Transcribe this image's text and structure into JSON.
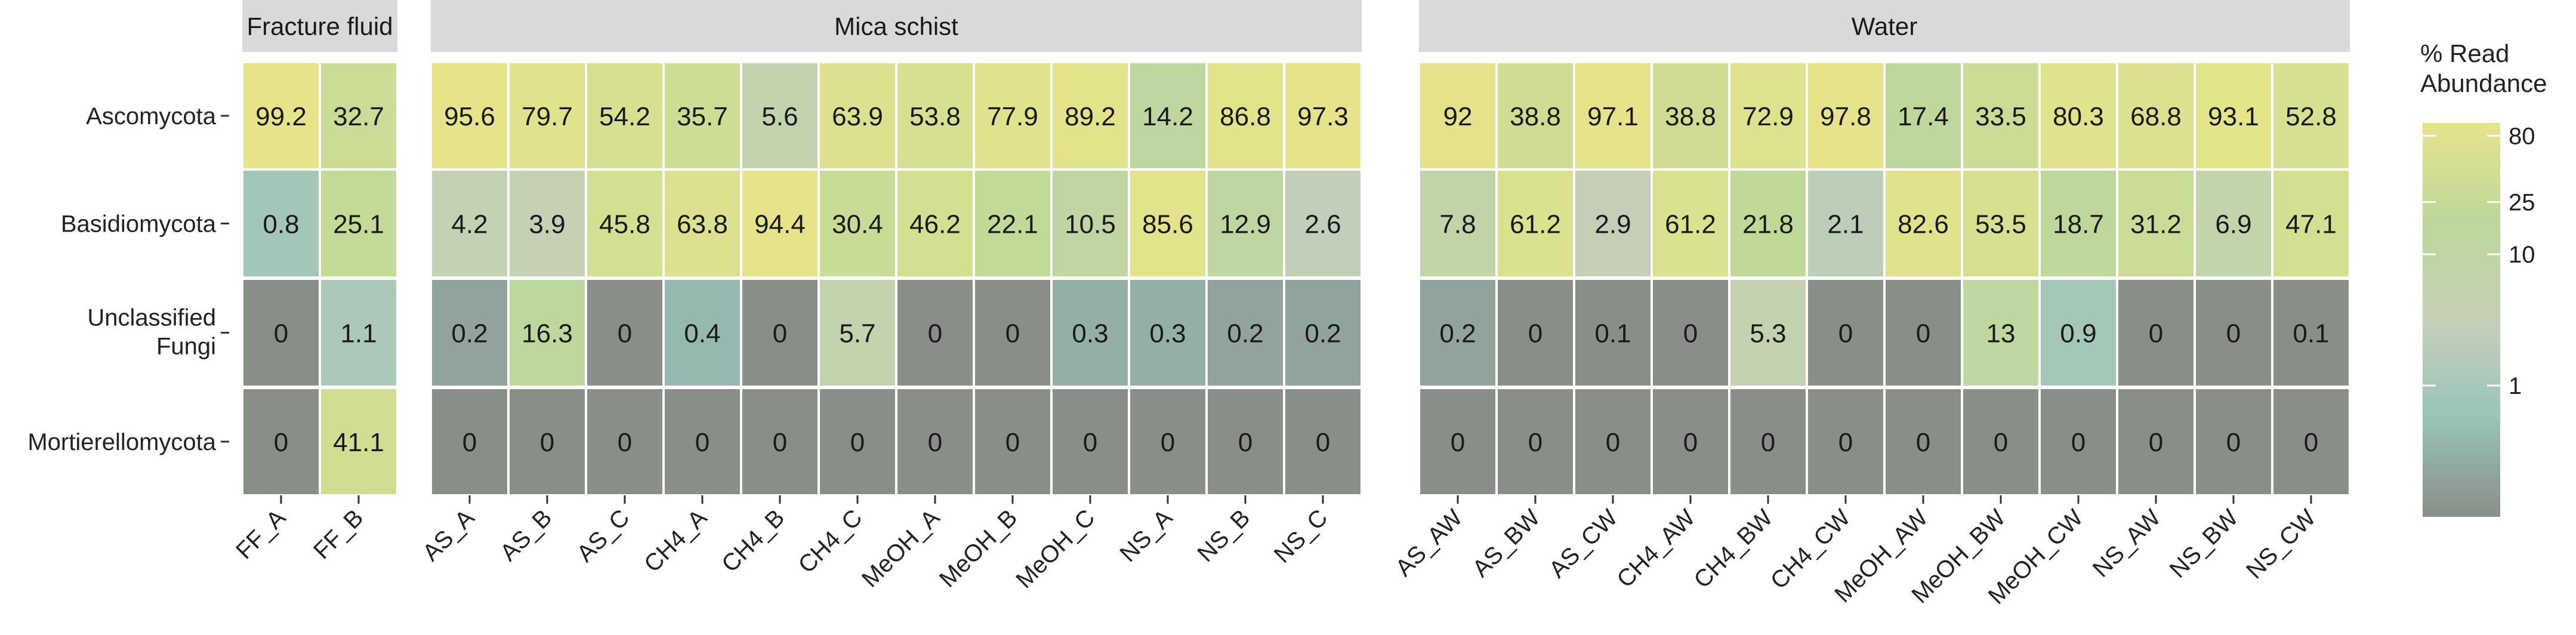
{
  "chart_data": {
    "type": "heatmap",
    "title": "",
    "rows": [
      "Ascomycota",
      "Basidiomycota",
      "Unclassified Fungi",
      "Mortierellomycota"
    ],
    "panels": [
      {
        "name": "Fracture fluid",
        "columns": [
          "FF_A",
          "FF_B"
        ],
        "values": [
          [
            99.2,
            32.7
          ],
          [
            0.8,
            25.1
          ],
          [
            0,
            1.1
          ],
          [
            0,
            41.1
          ]
        ]
      },
      {
        "name": "Mica schist",
        "columns": [
          "AS_A",
          "AS_B",
          "AS_C",
          "CH4_A",
          "CH4_B",
          "CH4_C",
          "MeOH_A",
          "MeOH_B",
          "MeOH_C",
          "NS_A",
          "NS_B",
          "NS_C"
        ],
        "values": [
          [
            95.6,
            79.7,
            54.2,
            35.7,
            5.6,
            63.9,
            53.8,
            77.9,
            89.2,
            14.2,
            86.8,
            97.3
          ],
          [
            4.2,
            3.9,
            45.8,
            63.8,
            94.4,
            30.4,
            46.2,
            22.1,
            10.5,
            85.6,
            12.9,
            2.6
          ],
          [
            0.2,
            16.3,
            0,
            0.4,
            0,
            5.7,
            0,
            0,
            0.3,
            0.3,
            0.2,
            0.2
          ],
          [
            0,
            0,
            0,
            0,
            0,
            0,
            0,
            0,
            0,
            0,
            0,
            0
          ]
        ]
      },
      {
        "name": "Water",
        "columns": [
          "AS_AW",
          "AS_BW",
          "AS_CW",
          "CH4_AW",
          "CH4_BW",
          "CH4_CW",
          "MeOH_AW",
          "MeOH_BW",
          "MeOH_CW",
          "NS_AW",
          "NS_BW",
          "NS_CW"
        ],
        "values": [
          [
            92,
            38.8,
            97.1,
            38.8,
            72.9,
            97.8,
            17.4,
            33.5,
            80.3,
            68.8,
            93.1,
            52.8
          ],
          [
            7.8,
            61.2,
            2.9,
            61.2,
            21.8,
            2.1,
            82.6,
            53.5,
            18.7,
            31.2,
            6.9,
            47.1
          ],
          [
            0.2,
            0,
            0.1,
            0,
            5.3,
            0,
            0,
            13,
            0.9,
            0,
            0,
            0.1
          ],
          [
            0,
            0,
            0,
            0,
            0,
            0,
            0,
            0,
            0,
            0,
            0,
            0
          ]
        ]
      }
    ],
    "legend": {
      "title_lines": [
        "% Read",
        "Abundance"
      ],
      "ticks": [
        80,
        25,
        10,
        1
      ],
      "scale": "log",
      "placement": "right",
      "colors": [
        "#8a8e88",
        "#98c4b8",
        "#c7d0b8",
        "#bcd89a",
        "#e6e48a"
      ]
    }
  }
}
